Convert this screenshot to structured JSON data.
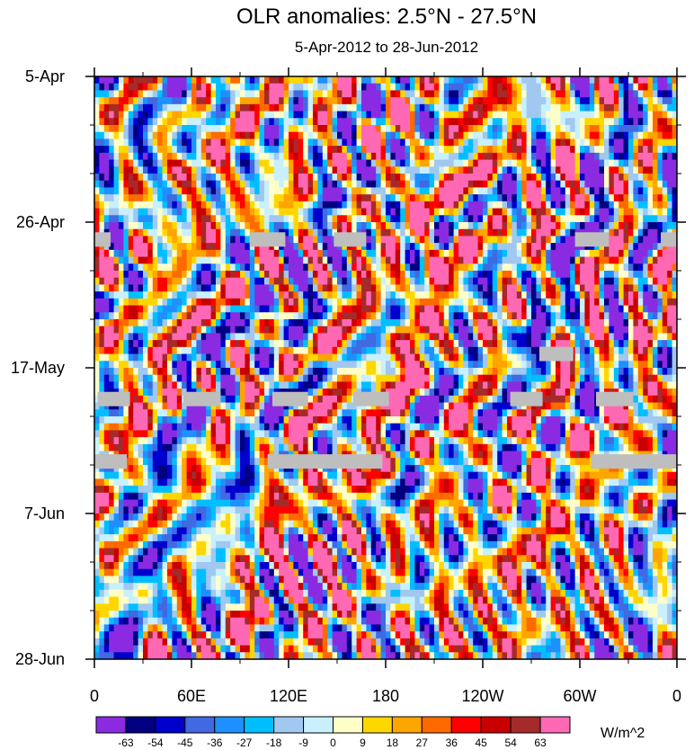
{
  "chart_data": {
    "type": "heatmap",
    "title": "OLR anomalies: 2.5°N - 27.5°N",
    "subtitle": "5-Apr-2012 to 28-Jun-2012",
    "xlabel": "",
    "ylabel": "",
    "x_ticks": [
      "0",
      "60E",
      "120E",
      "180",
      "120W",
      "60W",
      "0"
    ],
    "x_range_deg_east": [
      0,
      360
    ],
    "y_ticks": [
      "5-Apr",
      "26-Apr",
      "17-May",
      "7-Jun",
      "28-Jun"
    ],
    "y_range_days": [
      0,
      84
    ],
    "colorbar": {
      "unit": "W/m^2",
      "levels": [
        -63,
        -54,
        -45,
        -36,
        -27,
        -18,
        -9,
        0,
        9,
        18,
        27,
        36,
        45,
        54,
        63
      ],
      "colors": [
        "#8a2be2",
        "#000080",
        "#0000cd",
        "#4169e1",
        "#1e90ff",
        "#00bfff",
        "#a0c8f0",
        "#c8f0ff",
        "#ffffc8",
        "#ffd700",
        "#ffa500",
        "#ff6a00",
        "#ff0000",
        "#c80000",
        "#a52a2a",
        "#ff69b4"
      ]
    },
    "missing_data": {
      "color": "#bebebe",
      "segments": [
        {
          "day": 23.5,
          "lon_start": 0,
          "lon_end": 10
        },
        {
          "day": 23.5,
          "lon_start": 96,
          "lon_end": 118
        },
        {
          "day": 23.5,
          "lon_start": 148,
          "lon_end": 168
        },
        {
          "day": 23.5,
          "lon_start": 297,
          "lon_end": 318
        },
        {
          "day": 23.5,
          "lon_start": 350,
          "lon_end": 360
        },
        {
          "day": 40,
          "lon_start": 275,
          "lon_end": 296
        },
        {
          "day": 46.5,
          "lon_start": 2,
          "lon_end": 22
        },
        {
          "day": 46.5,
          "lon_start": 55,
          "lon_end": 78
        },
        {
          "day": 46.5,
          "lon_start": 110,
          "lon_end": 132
        },
        {
          "day": 46.5,
          "lon_start": 160,
          "lon_end": 182
        },
        {
          "day": 46.5,
          "lon_start": 257,
          "lon_end": 277
        },
        {
          "day": 46.5,
          "lon_start": 310,
          "lon_end": 333
        },
        {
          "day": 55.5,
          "lon_start": 0,
          "lon_end": 20
        },
        {
          "day": 55.5,
          "lon_start": 107,
          "lon_end": 178
        },
        {
          "day": 55.5,
          "lon_start": 307,
          "lon_end": 360
        }
      ]
    }
  }
}
